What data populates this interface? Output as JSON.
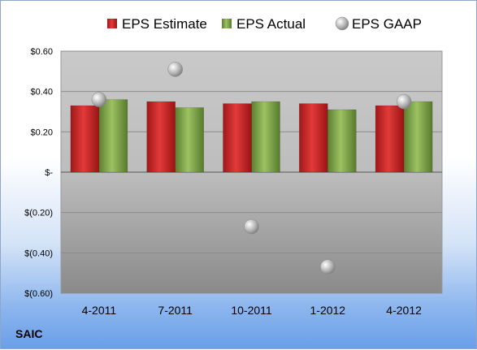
{
  "chart_data": {
    "type": "bar",
    "categories": [
      "4-2011",
      "7-2011",
      "10-2011",
      "1-2012",
      "4-2012"
    ],
    "series": [
      {
        "name": "EPS Estimate",
        "kind": "bar",
        "color": "#d42a2a",
        "values": [
          0.33,
          0.35,
          0.34,
          0.34,
          0.33
        ]
      },
      {
        "name": "EPS Actual",
        "kind": "bar",
        "color": "#7fa84a",
        "values": [
          0.36,
          0.32,
          0.35,
          0.31,
          0.35
        ]
      },
      {
        "name": "EPS GAAP",
        "kind": "marker",
        "color": "#b8b8b8",
        "values": [
          0.36,
          0.51,
          -0.27,
          -0.47,
          0.35
        ]
      }
    ],
    "ylim": [
      -0.6,
      0.6
    ],
    "yticks": [
      {
        "value": 0.6,
        "label": "$0.60"
      },
      {
        "value": 0.4,
        "label": "$0.40"
      },
      {
        "value": 0.2,
        "label": "$0.20"
      },
      {
        "value": 0,
        "label": "$-"
      },
      {
        "value": -0.2,
        "label": "$(0.20)"
      },
      {
        "value": -0.4,
        "label": "$(0.40)"
      },
      {
        "value": -0.6,
        "label": "$(0.60)"
      }
    ],
    "grid": true,
    "legend_position": "top"
  },
  "footer": {
    "company": "SAIC"
  }
}
